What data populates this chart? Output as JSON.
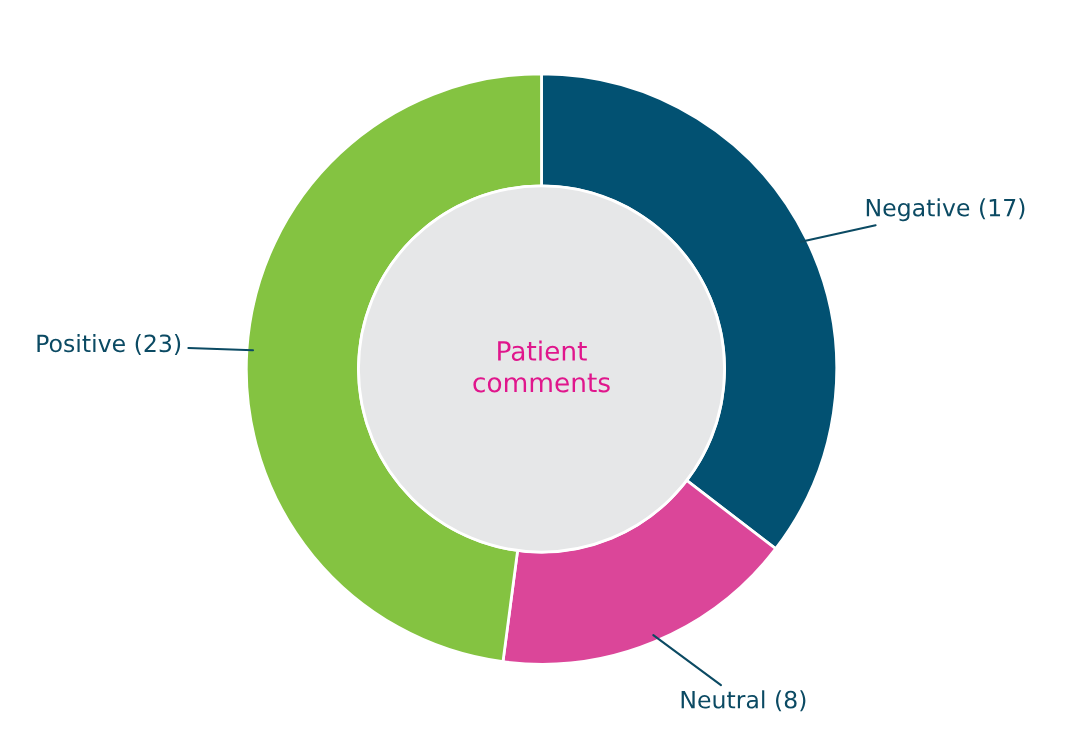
{
  "chart_data": {
    "type": "donut",
    "title": "Patient\ncomments",
    "categories": [
      "Negative (17)",
      "Neutral (8)",
      "Positive (23)"
    ],
    "values": [
      17,
      8,
      23
    ],
    "colors": [
      "#025172",
      "#db4699",
      "#84c341"
    ],
    "legend": false
  }
}
